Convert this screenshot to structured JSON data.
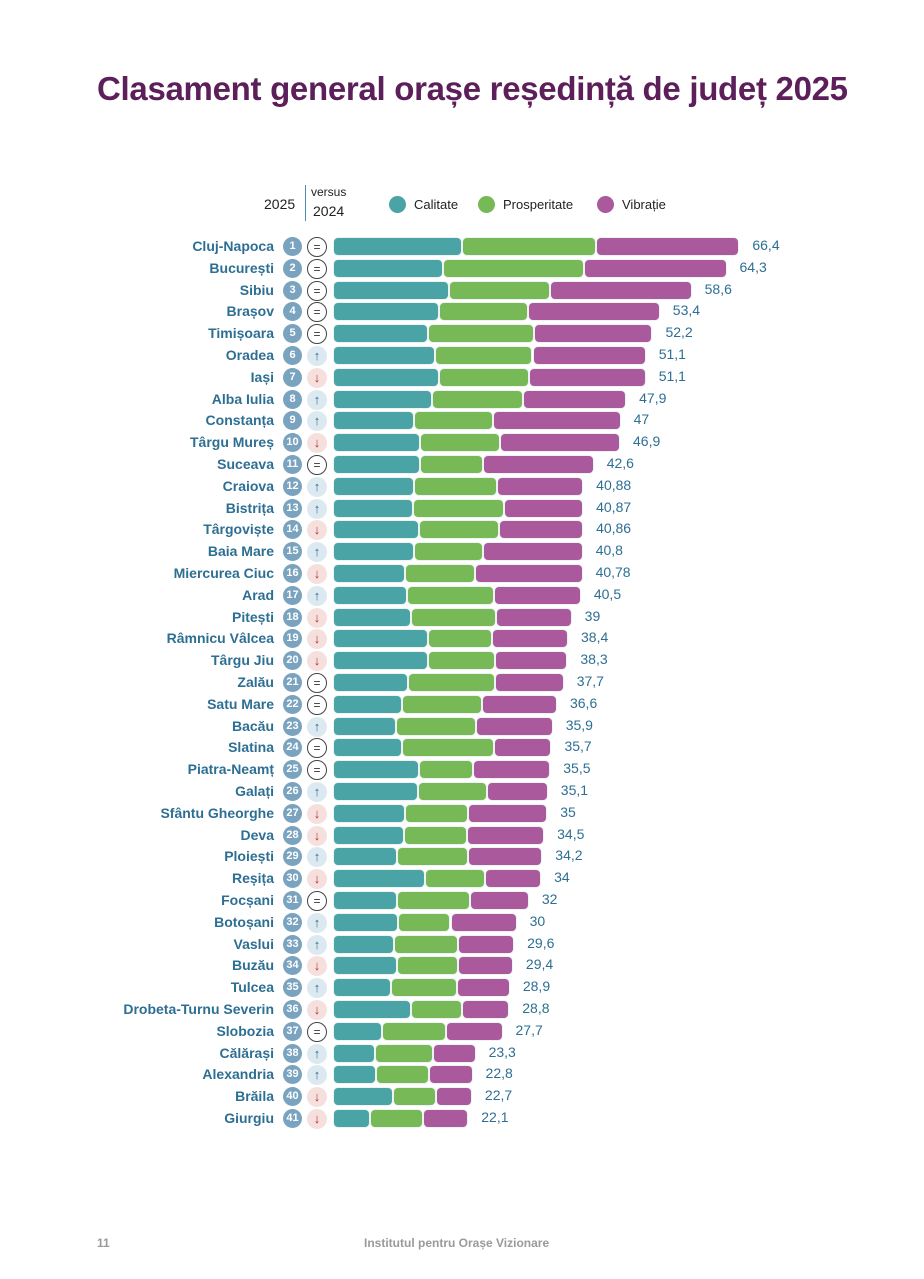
{
  "title": "Clasament general orașe reședință de județ 2025",
  "header": {
    "year_current": "2025",
    "versus_label": "versus",
    "year_previous": "2024"
  },
  "legend": [
    {
      "name": "Calitate",
      "color": "#4aa3a5"
    },
    {
      "name": "Prosperitate",
      "color": "#78b957"
    },
    {
      "name": "Vibrație",
      "color": "#aa5a9c"
    }
  ],
  "change_icons": {
    "same": "=",
    "up": "↑",
    "down": "↓"
  },
  "footer": {
    "page_number": "11",
    "organization": "Institutul pentru Orașe Vizionare"
  },
  "chart_data": {
    "type": "bar",
    "orientation": "horizontal-stacked",
    "title": "Clasament general orașe reședință de județ 2025",
    "xlabel": "",
    "ylabel": "",
    "xlim": [
      0,
      70
    ],
    "grid": false,
    "legend_position": "top",
    "series_names": [
      "Calitate",
      "Prosperitate",
      "Vibrație"
    ],
    "rows": [
      {
        "rank": 1,
        "city": "Cluj-Napoca",
        "change": "same",
        "total": "66,4",
        "calitate": 21.0,
        "prosperitate": 22.0,
        "vibratie": 23.4
      },
      {
        "rank": 2,
        "city": "București",
        "change": "same",
        "total": "64,3",
        "calitate": 18.0,
        "prosperitate": 23.0,
        "vibratie": 23.3
      },
      {
        "rank": 3,
        "city": "Sibiu",
        "change": "same",
        "total": "58,6",
        "calitate": 19.0,
        "prosperitate": 16.5,
        "vibratie": 23.1
      },
      {
        "rank": 4,
        "city": "Brașov",
        "change": "same",
        "total": "53,4",
        "calitate": 17.4,
        "prosperitate": 14.4,
        "vibratie": 21.6
      },
      {
        "rank": 5,
        "city": "Timișoara",
        "change": "same",
        "total": "52,2",
        "calitate": 15.6,
        "prosperitate": 17.3,
        "vibratie": 19.3
      },
      {
        "rank": 6,
        "city": "Oradea",
        "change": "up",
        "total": "51,1",
        "calitate": 16.6,
        "prosperitate": 16.0,
        "vibratie": 18.5
      },
      {
        "rank": 7,
        "city": "Iași",
        "change": "down",
        "total": "51,1",
        "calitate": 17.4,
        "prosperitate": 14.6,
        "vibratie": 19.1
      },
      {
        "rank": 8,
        "city": "Alba Iulia",
        "change": "up",
        "total": "47,9",
        "calitate": 16.1,
        "prosperitate": 15.0,
        "vibratie": 16.8
      },
      {
        "rank": 9,
        "city": "Constanța",
        "change": "up",
        "total": "47",
        "calitate": 13.3,
        "prosperitate": 12.9,
        "vibratie": 20.8
      },
      {
        "rank": 10,
        "city": "Târgu Mureș",
        "change": "down",
        "total": "46,9",
        "calitate": 14.2,
        "prosperitate": 13.1,
        "vibratie": 19.6
      },
      {
        "rank": 11,
        "city": "Suceava",
        "change": "same",
        "total": "42,6",
        "calitate": 14.2,
        "prosperitate": 10.3,
        "vibratie": 18.1
      },
      {
        "rank": 12,
        "city": "Craiova",
        "change": "up",
        "total": "40,88",
        "calitate": 13.3,
        "prosperitate": 13.5,
        "vibratie": 14.08
      },
      {
        "rank": 13,
        "city": "Bistrița",
        "change": "up",
        "total": "40,87",
        "calitate": 13.0,
        "prosperitate": 14.9,
        "vibratie": 12.97
      },
      {
        "rank": 14,
        "city": "Târgoviște",
        "change": "down",
        "total": "40,86",
        "calitate": 14.0,
        "prosperitate": 13.1,
        "vibratie": 13.76
      },
      {
        "rank": 15,
        "city": "Baia Mare",
        "change": "up",
        "total": "40,8",
        "calitate": 13.3,
        "prosperitate": 11.2,
        "vibratie": 16.3
      },
      {
        "rank": 16,
        "city": "Miercurea Ciuc",
        "change": "down",
        "total": "40,78",
        "calitate": 11.8,
        "prosperitate": 11.4,
        "vibratie": 17.58
      },
      {
        "rank": 17,
        "city": "Arad",
        "change": "up",
        "total": "40,5",
        "calitate": 12.1,
        "prosperitate": 14.2,
        "vibratie": 14.2
      },
      {
        "rank": 18,
        "city": "Pitești",
        "change": "down",
        "total": "39",
        "calitate": 12.8,
        "prosperitate": 13.9,
        "vibratie": 12.3
      },
      {
        "rank": 19,
        "city": "Râmnicu Vâlcea",
        "change": "down",
        "total": "38,4",
        "calitate": 15.5,
        "prosperitate": 10.4,
        "vibratie": 12.5
      },
      {
        "rank": 20,
        "city": "Târgu Jiu",
        "change": "down",
        "total": "38,3",
        "calitate": 15.6,
        "prosperitate": 10.9,
        "vibratie": 11.8
      },
      {
        "rank": 21,
        "city": "Zalău",
        "change": "same",
        "total": "37,7",
        "calitate": 12.2,
        "prosperitate": 14.3,
        "vibratie": 11.2
      },
      {
        "rank": 22,
        "city": "Satu Mare",
        "change": "same",
        "total": "36,6",
        "calitate": 11.3,
        "prosperitate": 13.1,
        "vibratie": 12.2
      },
      {
        "rank": 23,
        "city": "Bacău",
        "change": "up",
        "total": "35,9",
        "calitate": 10.3,
        "prosperitate": 13.0,
        "vibratie": 12.6
      },
      {
        "rank": 24,
        "city": "Slatina",
        "change": "same",
        "total": "35,7",
        "calitate": 11.3,
        "prosperitate": 15.0,
        "vibratie": 9.4
      },
      {
        "rank": 25,
        "city": "Piatra-Neamț",
        "change": "same",
        "total": "35,5",
        "calitate": 14.0,
        "prosperitate": 8.8,
        "vibratie": 12.7
      },
      {
        "rank": 26,
        "city": "Galați",
        "change": "up",
        "total": "35,1",
        "calitate": 13.9,
        "prosperitate": 11.3,
        "vibratie": 9.9
      },
      {
        "rank": 27,
        "city": "Sfântu Gheorghe",
        "change": "down",
        "total": "35",
        "calitate": 11.7,
        "prosperitate": 10.4,
        "vibratie": 12.9
      },
      {
        "rank": 28,
        "city": "Deva",
        "change": "down",
        "total": "34,5",
        "calitate": 11.6,
        "prosperitate": 10.3,
        "vibratie": 12.6
      },
      {
        "rank": 29,
        "city": "Ploiești",
        "change": "up",
        "total": "34,2",
        "calitate": 10.5,
        "prosperitate": 11.6,
        "vibratie": 12.1
      },
      {
        "rank": 30,
        "city": "Reșița",
        "change": "down",
        "total": "34",
        "calitate": 15.0,
        "prosperitate": 9.8,
        "vibratie": 9.2
      },
      {
        "rank": 31,
        "city": "Focșani",
        "change": "same",
        "total": "32",
        "calitate": 10.4,
        "prosperitate": 12.0,
        "vibratie": 9.6
      },
      {
        "rank": 32,
        "city": "Botoșani",
        "change": "up",
        "total": "30",
        "calitate": 10.6,
        "prosperitate": 8.6,
        "vibratie": 10.8
      },
      {
        "rank": 33,
        "city": "Vaslui",
        "change": "up",
        "total": "29,6",
        "calitate": 10.0,
        "prosperitate": 10.5,
        "vibratie": 9.1
      },
      {
        "rank": 34,
        "city": "Buzău",
        "change": "down",
        "total": "29,4",
        "calitate": 10.4,
        "prosperitate": 10.1,
        "vibratie": 8.9
      },
      {
        "rank": 35,
        "city": "Tulcea",
        "change": "up",
        "total": "28,9",
        "calitate": 9.4,
        "prosperitate": 10.9,
        "vibratie": 8.6
      },
      {
        "rank": 36,
        "city": "Drobeta-Turnu Severin",
        "change": "down",
        "total": "28,8",
        "calitate": 12.8,
        "prosperitate": 8.3,
        "vibratie": 7.7
      },
      {
        "rank": 37,
        "city": "Slobozia",
        "change": "same",
        "total": "27,7",
        "calitate": 8.0,
        "prosperitate": 10.5,
        "vibratie": 9.2
      },
      {
        "rank": 38,
        "city": "Călărași",
        "change": "up",
        "total": "23,3",
        "calitate": 6.9,
        "prosperitate": 9.5,
        "vibratie": 6.9
      },
      {
        "rank": 39,
        "city": "Alexandria",
        "change": "up",
        "total": "22,8",
        "calitate": 7.1,
        "prosperitate": 8.6,
        "vibratie": 7.1
      },
      {
        "rank": 40,
        "city": "Brăila",
        "change": "down",
        "total": "22,7",
        "calitate": 9.8,
        "prosperitate": 7.0,
        "vibratie": 5.9
      },
      {
        "rank": 41,
        "city": "Giurgiu",
        "change": "down",
        "total": "22,1",
        "calitate": 6.1,
        "prosperitate": 8.6,
        "vibratie": 7.4
      }
    ]
  }
}
